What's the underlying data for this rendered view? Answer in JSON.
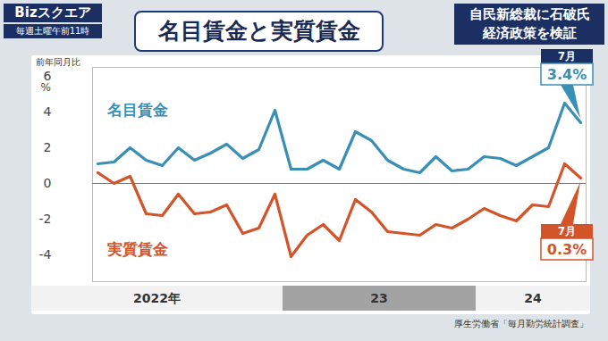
{
  "header": {
    "logo": "Bizスクエア",
    "schedule": "毎週土曜午前11時",
    "headline": [
      "自民新総裁に石破氏",
      "経済政策を検証"
    ]
  },
  "chart_data": {
    "type": "line",
    "title": "名目賃金と実質賃金",
    "y_label": "前年同月比",
    "y_unit": "%",
    "source": "厚生労働省「毎月勤労統計調査」",
    "x_groups": [
      {
        "label": "2022年",
        "count": 12
      },
      {
        "label": "23",
        "count": 12
      },
      {
        "label": "24",
        "count": 7
      }
    ],
    "series": [
      {
        "name": "名目賃金",
        "color": "#3a8fb4",
        "values": [
          1.1,
          1.2,
          2.0,
          1.3,
          1.0,
          2.0,
          1.3,
          1.7,
          2.2,
          1.4,
          1.9,
          4.1,
          0.8,
          0.8,
          1.3,
          0.8,
          2.9,
          2.4,
          1.3,
          0.8,
          0.6,
          1.5,
          0.7,
          0.8,
          1.5,
          1.4,
          1.0,
          1.5,
          2.0,
          4.5,
          3.4
        ],
        "callout": {
          "label": "7月",
          "value_label": "3.4%"
        }
      },
      {
        "name": "実質賃金",
        "color": "#d4542a",
        "values": [
          0.6,
          0.0,
          0.4,
          -1.7,
          -1.8,
          -0.6,
          -1.7,
          -1.6,
          -1.2,
          -2.8,
          -2.5,
          -0.6,
          -4.1,
          -2.9,
          -2.3,
          -3.2,
          -0.9,
          -1.6,
          -2.7,
          -2.8,
          -2.9,
          -2.3,
          -2.5,
          -2.0,
          -1.4,
          -1.8,
          -2.1,
          -1.2,
          -1.3,
          1.1,
          0.3
        ],
        "callout": {
          "label": "7月",
          "value_label": "0.3%"
        }
      }
    ],
    "ylim": [
      -5.5,
      6.5
    ],
    "yticks": [
      -4,
      -2,
      0,
      2,
      4,
      6
    ],
    "baseline": 0,
    "grid": false
  }
}
